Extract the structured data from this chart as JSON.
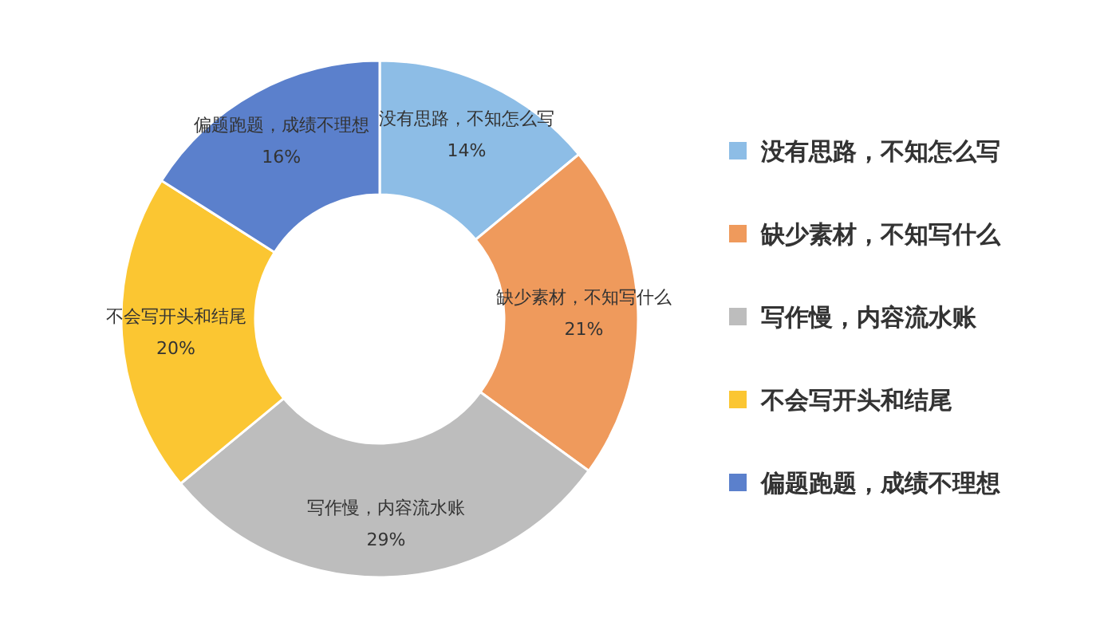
{
  "chart_data": {
    "type": "donut",
    "categories": [
      "没有思路，不知怎么写",
      "缺少素材，不知写什么",
      "写作慢，内容流水账",
      "不会写开头和结尾",
      "偏题跑题，成绩不理想"
    ],
    "values": [
      14,
      21,
      29,
      20,
      16
    ],
    "value_labels": [
      "14%",
      "21%",
      "29%",
      "20%",
      "16%"
    ],
    "colors": [
      "#8dbde6",
      "#ef9a5c",
      "#bdbdbd",
      "#fbc632",
      "#5b80cc"
    ],
    "legend": "right"
  }
}
